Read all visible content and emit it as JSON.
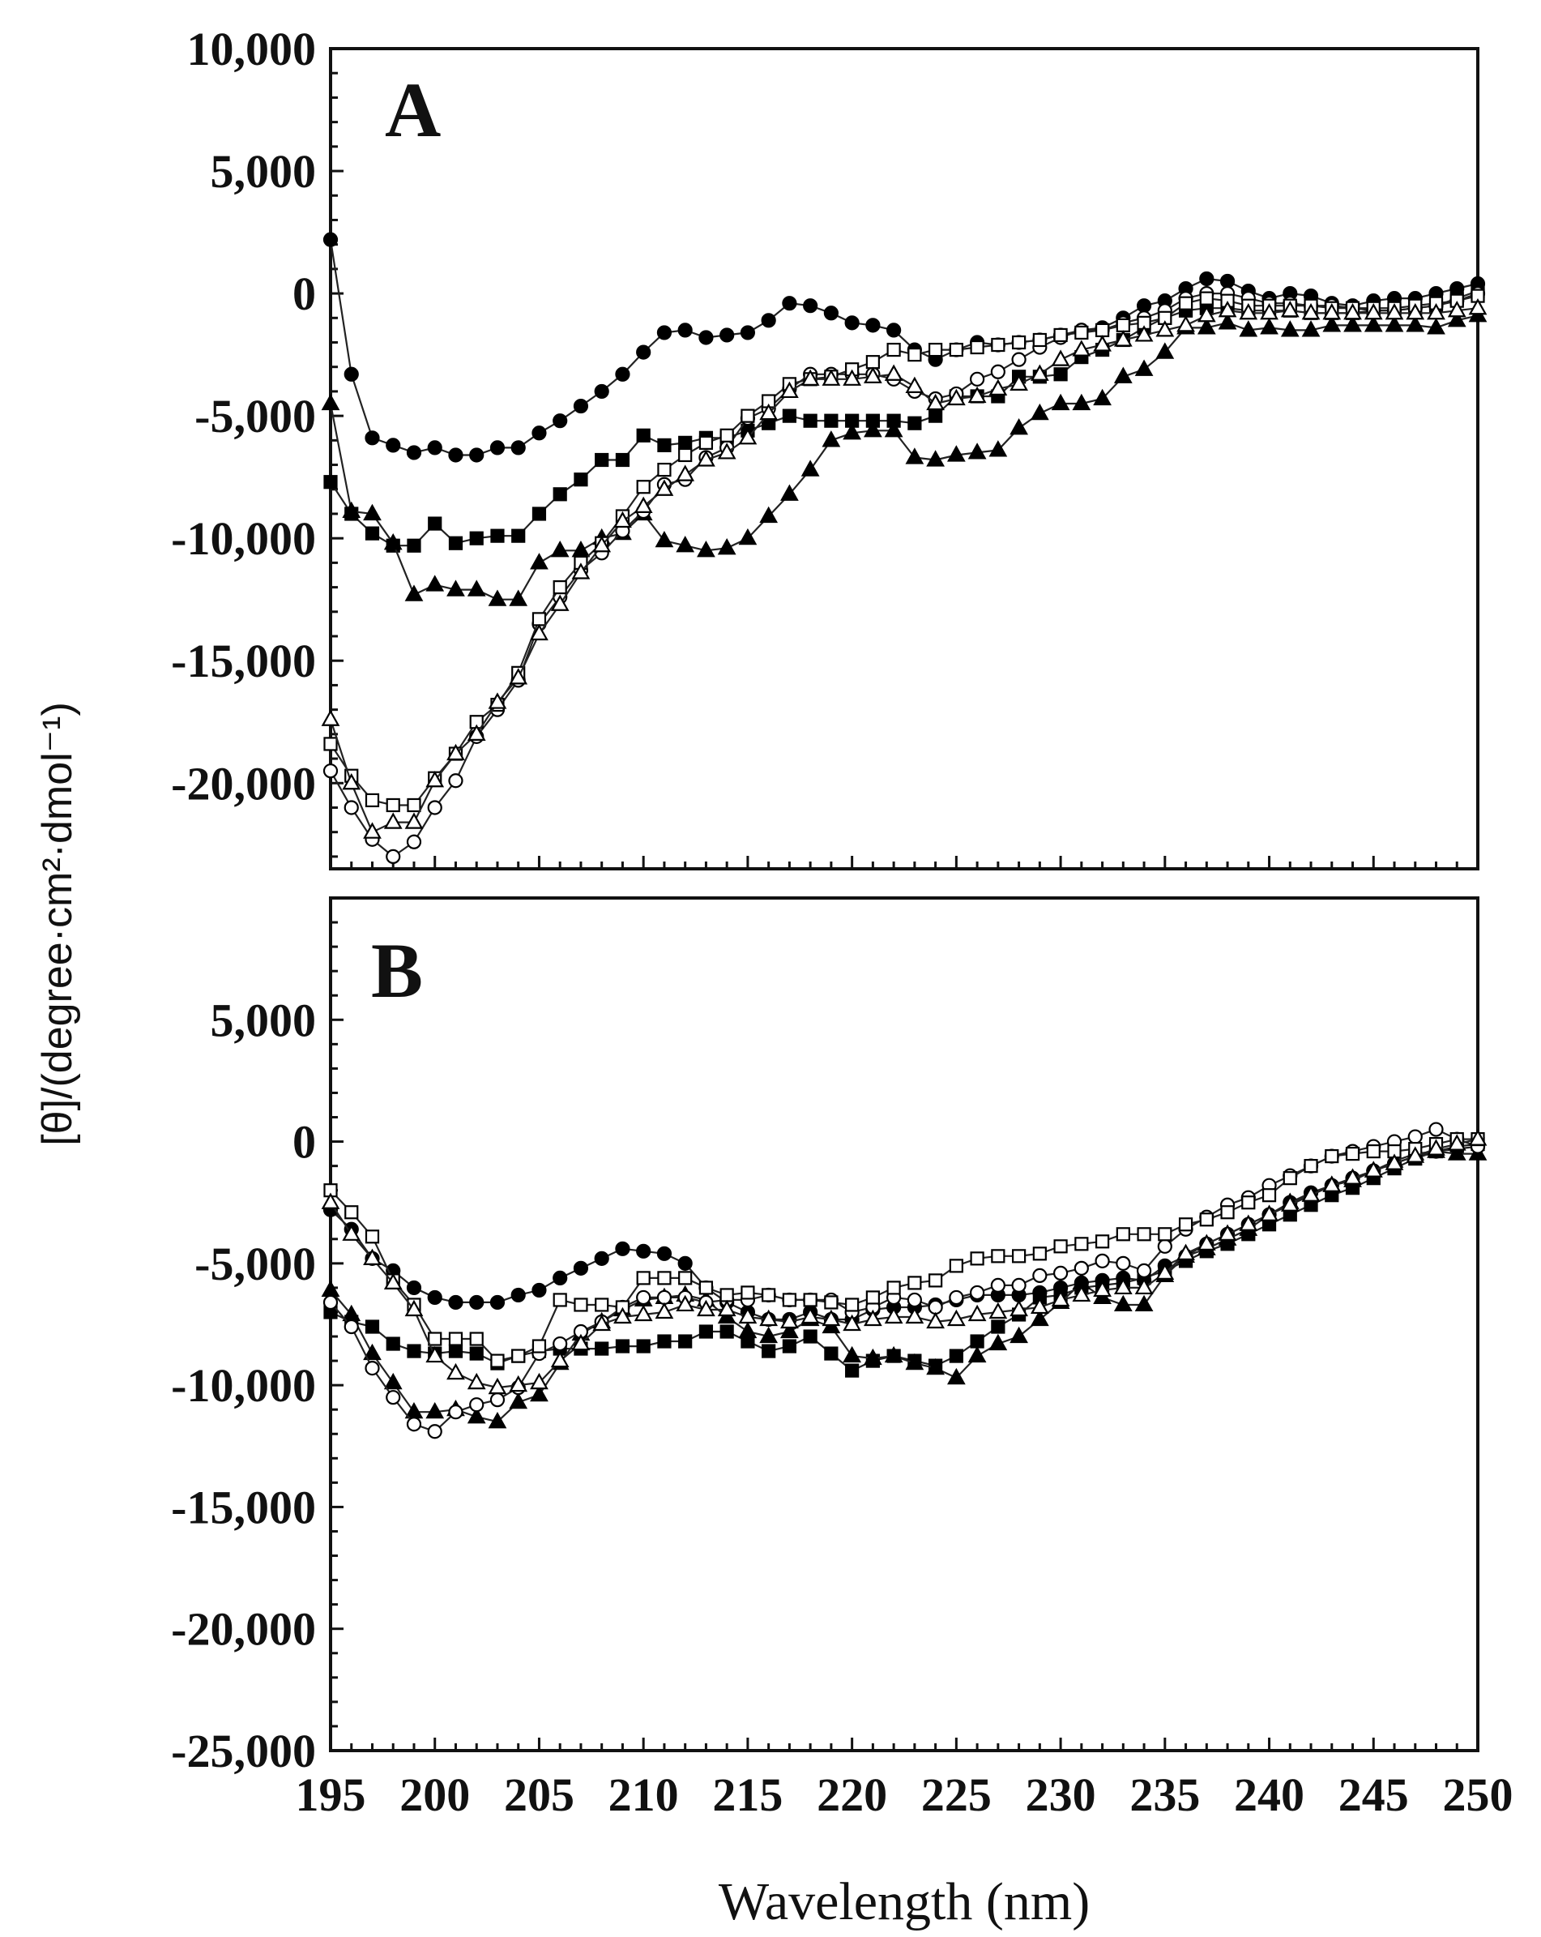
{
  "chart_data": [
    {
      "type": "line",
      "panel_label": "A",
      "xlabel": "",
      "ylabel": "[θ]/(degree·cm²·dmol⁻¹)",
      "xlim": [
        195,
        250
      ],
      "ylim": [
        -23500,
        10000
      ],
      "y_ticks": [
        10000,
        5000,
        0,
        -5000,
        -10000,
        -15000,
        -20000
      ],
      "y_tick_labels": [
        "10,000",
        "5,000",
        "0",
        "-5,000",
        "-10,000",
        "-15,000",
        "-20,000"
      ],
      "x": [
        195,
        196,
        197,
        198,
        199,
        200,
        201,
        202,
        203,
        204,
        205,
        206,
        207,
        208,
        209,
        210,
        211,
        212,
        213,
        214,
        215,
        216,
        217,
        218,
        219,
        220,
        221,
        222,
        223,
        224,
        225,
        226,
        227,
        228,
        229,
        230,
        231,
        232,
        233,
        234,
        235,
        236,
        237,
        238,
        239,
        240,
        241,
        242,
        243,
        244,
        245,
        246,
        247,
        248,
        249,
        250
      ],
      "series": [
        {
          "name": "filled circle",
          "marker": "circle",
          "filled": true,
          "values": [
            2200,
            -3300,
            -5900,
            -6200,
            -6500,
            -6300,
            -6600,
            -6600,
            -6300,
            -6300,
            -5700,
            -5200,
            -4600,
            -4000,
            -3300,
            -2400,
            -1600,
            -1500,
            -1800,
            -1700,
            -1600,
            -1100,
            -400,
            -500,
            -800,
            -1200,
            -1300,
            -1500,
            -2300,
            -2700,
            -2300,
            -2000,
            -2100,
            -2000,
            -1900,
            -1700,
            -1500,
            -1400,
            -1000,
            -500,
            -300,
            200,
            600,
            500,
            100,
            -200,
            0,
            -100,
            -400,
            -500,
            -300,
            -200,
            -200,
            0,
            200,
            400
          ]
        },
        {
          "name": "filled square",
          "marker": "square",
          "filled": true,
          "values": [
            -7700,
            -9000,
            -9800,
            -10300,
            -10300,
            -9400,
            -10200,
            -10000,
            -9900,
            -9900,
            -9000,
            -8200,
            -7600,
            -6800,
            -6800,
            -5800,
            -6200,
            -6100,
            -5900,
            -5900,
            -5600,
            -5300,
            -5000,
            -5200,
            -5200,
            -5200,
            -5200,
            -5200,
            -5300,
            -5000,
            -4200,
            -4200,
            -4200,
            -3400,
            -3400,
            -3300,
            -2600,
            -2300,
            -1900,
            -1400,
            -1000,
            -700,
            -600,
            -600,
            -700,
            -700,
            -700,
            -800,
            -800,
            -800,
            -700,
            -700,
            -600,
            -500,
            -200,
            100
          ]
        },
        {
          "name": "filled triangle",
          "marker": "triangle",
          "filled": true,
          "values": [
            -4500,
            -8900,
            -9000,
            -10200,
            -12300,
            -11900,
            -12100,
            -12100,
            -12500,
            -12500,
            -11000,
            -10500,
            -10500,
            -10000,
            -9800,
            -9000,
            -10100,
            -10300,
            -10500,
            -10400,
            -10000,
            -9100,
            -8200,
            -7200,
            -6000,
            -5700,
            -5600,
            -5600,
            -6700,
            -6800,
            -6600,
            -6500,
            -6400,
            -5500,
            -4900,
            -4500,
            -4500,
            -4300,
            -3400,
            -3100,
            -2400,
            -1400,
            -1400,
            -1200,
            -1500,
            -1400,
            -1500,
            -1500,
            -1300,
            -1300,
            -1300,
            -1300,
            -1300,
            -1400,
            -1100,
            -900
          ]
        },
        {
          "name": "open circle",
          "marker": "circle",
          "filled": false,
          "values": [
            -19500,
            -21000,
            -22300,
            -23000,
            -22400,
            -21000,
            -19900,
            -18100,
            -17000,
            -15800,
            -13500,
            -12400,
            -11300,
            -10600,
            -9700,
            -8900,
            -7800,
            -7600,
            -6700,
            -6300,
            -5100,
            -4700,
            -3900,
            -3300,
            -3300,
            -3300,
            -3300,
            -3500,
            -4000,
            -4300,
            -4100,
            -3500,
            -3200,
            -2700,
            -2200,
            -1800,
            -1500,
            -1500,
            -1200,
            -1000,
            -700,
            -200,
            0,
            0,
            -200,
            -400,
            -400,
            -500,
            -500,
            -600,
            -700,
            -700,
            -600,
            -500,
            -300,
            0
          ]
        },
        {
          "name": "open square",
          "marker": "square",
          "filled": false,
          "values": [
            -18400,
            -19700,
            -20700,
            -20900,
            -20900,
            -19800,
            -18800,
            -17500,
            -16800,
            -15500,
            -13300,
            -12000,
            -11000,
            -10200,
            -9100,
            -7900,
            -7200,
            -6600,
            -6100,
            -5800,
            -5000,
            -4400,
            -3700,
            -3500,
            -3400,
            -3100,
            -2800,
            -2300,
            -2500,
            -2300,
            -2300,
            -2200,
            -2100,
            -2000,
            -1900,
            -1700,
            -1600,
            -1500,
            -1300,
            -1200,
            -1000,
            -400,
            -200,
            -300,
            -500,
            -500,
            -500,
            -500,
            -600,
            -600,
            -600,
            -600,
            -500,
            -400,
            -300,
            -100
          ]
        },
        {
          "name": "open triangle",
          "marker": "triangle",
          "filled": false,
          "values": [
            -17400,
            -20000,
            -22000,
            -21600,
            -21600,
            -19900,
            -18800,
            -18000,
            -16700,
            -15700,
            -13900,
            -12700,
            -11400,
            -10300,
            -9300,
            -8700,
            -8000,
            -7400,
            -6800,
            -6500,
            -5900,
            -4900,
            -4000,
            -3500,
            -3500,
            -3500,
            -3400,
            -3300,
            -3800,
            -4500,
            -4300,
            -4200,
            -3900,
            -3700,
            -3300,
            -2700,
            -2300,
            -2100,
            -1900,
            -1700,
            -1500,
            -1300,
            -900,
            -700,
            -800,
            -800,
            -700,
            -800,
            -800,
            -800,
            -800,
            -800,
            -800,
            -800,
            -700,
            -600
          ]
        }
      ]
    },
    {
      "type": "line",
      "panel_label": "B",
      "xlabel": "Wavelength (nm)",
      "ylabel": "[θ]/(degree·cm²·dmol⁻¹)",
      "xlim": [
        195,
        250
      ],
      "ylim": [
        -25000,
        10000
      ],
      "x_ticks": [
        195,
        200,
        205,
        210,
        215,
        220,
        225,
        230,
        235,
        240,
        245,
        250
      ],
      "x_tick_labels": [
        "195",
        "200",
        "205",
        "210",
        "215",
        "220",
        "225",
        "230",
        "235",
        "240",
        "245",
        "250"
      ],
      "y_ticks": [
        5000,
        0,
        -5000,
        -10000,
        -15000,
        -20000,
        -25000
      ],
      "y_tick_labels": [
        "5,000",
        "0",
        "-5,000",
        "-10,000",
        "-15,000",
        "-20,000",
        "-25,000"
      ],
      "x": [
        195,
        196,
        197,
        198,
        199,
        200,
        201,
        202,
        203,
        204,
        205,
        206,
        207,
        208,
        209,
        210,
        211,
        212,
        213,
        214,
        215,
        216,
        217,
        218,
        219,
        220,
        221,
        222,
        223,
        224,
        225,
        226,
        227,
        228,
        229,
        230,
        231,
        232,
        233,
        234,
        235,
        236,
        237,
        238,
        239,
        240,
        241,
        242,
        243,
        244,
        245,
        246,
        247,
        248,
        249,
        250
      ],
      "series": [
        {
          "name": "filled circle",
          "marker": "circle",
          "filled": true,
          "values": [
            -2800,
            -3600,
            -4800,
            -5300,
            -6000,
            -6400,
            -6600,
            -6600,
            -6600,
            -6300,
            -6100,
            -5600,
            -5200,
            -4800,
            -4400,
            -4500,
            -4600,
            -5000,
            -6000,
            -6600,
            -7000,
            -7300,
            -7300,
            -7000,
            -7300,
            -7300,
            -6900,
            -6800,
            -6800,
            -6700,
            -6500,
            -6300,
            -6300,
            -6300,
            -6200,
            -6000,
            -5800,
            -5700,
            -5600,
            -5700,
            -5100,
            -4700,
            -4200,
            -3800,
            -3400,
            -3000,
            -2500,
            -2100,
            -1800,
            -1500,
            -1200,
            -900,
            -600,
            -400,
            -300,
            -200
          ]
        },
        {
          "name": "filled square",
          "marker": "square",
          "filled": true,
          "values": [
            -7000,
            -7400,
            -7600,
            -8300,
            -8600,
            -8700,
            -8600,
            -8700,
            -9100,
            -8800,
            -8600,
            -8500,
            -8500,
            -8500,
            -8400,
            -8400,
            -8200,
            -8200,
            -7800,
            -7800,
            -8200,
            -8600,
            -8400,
            -8000,
            -8700,
            -9400,
            -9000,
            -8800,
            -9000,
            -9200,
            -8800,
            -8200,
            -7600,
            -7100,
            -6400,
            -6300,
            -6000,
            -5900,
            -5800,
            -5600,
            -5300,
            -4900,
            -4500,
            -4200,
            -3800,
            -3400,
            -3000,
            -2600,
            -2200,
            -1900,
            -1500,
            -1100,
            -700,
            -400,
            -200,
            -100
          ]
        },
        {
          "name": "filled triangle",
          "marker": "triangle",
          "filled": true,
          "values": [
            -6100,
            -7100,
            -8700,
            -9900,
            -11100,
            -11100,
            -11000,
            -11300,
            -11500,
            -10700,
            -10400,
            -9100,
            -7900,
            -7400,
            -6900,
            -6500,
            -6400,
            -6300,
            -6500,
            -7200,
            -7800,
            -8000,
            -7800,
            -7300,
            -7600,
            -8800,
            -8900,
            -8800,
            -9100,
            -9300,
            -9700,
            -8800,
            -8300,
            -8000,
            -7300,
            -6600,
            -5800,
            -6400,
            -6700,
            -6700,
            -5500,
            -4700,
            -4400,
            -4000,
            -3600,
            -3000,
            -2500,
            -2200,
            -1800,
            -1600,
            -1200,
            -800,
            -500,
            -400,
            -500,
            -500
          ]
        },
        {
          "name": "open circle",
          "marker": "circle",
          "filled": false,
          "values": [
            -6600,
            -7600,
            -9300,
            -10500,
            -11600,
            -11900,
            -11100,
            -10800,
            -10600,
            -10100,
            -8700,
            -8300,
            -7800,
            -7400,
            -6800,
            -6400,
            -6400,
            -6400,
            -6600,
            -6500,
            -6500,
            -6300,
            -6500,
            -6500,
            -6500,
            -7000,
            -6800,
            -6400,
            -6500,
            -6800,
            -6400,
            -6200,
            -5900,
            -5900,
            -5500,
            -5400,
            -5200,
            -4900,
            -5000,
            -5300,
            -4300,
            -3600,
            -3100,
            -2600,
            -2300,
            -1800,
            -1400,
            -1000,
            -600,
            -400,
            -200,
            0,
            200,
            500,
            100,
            -200
          ]
        },
        {
          "name": "open square",
          "marker": "square",
          "filled": false,
          "values": [
            -2000,
            -2900,
            -3900,
            -5700,
            -6700,
            -8100,
            -8100,
            -8100,
            -9000,
            -8800,
            -8400,
            -6500,
            -6700,
            -6700,
            -6800,
            -5600,
            -5600,
            -5600,
            -6000,
            -6300,
            -6200,
            -6300,
            -6500,
            -6500,
            -6600,
            -6700,
            -6400,
            -6000,
            -5800,
            -5700,
            -5100,
            -4800,
            -4700,
            -4700,
            -4600,
            -4300,
            -4200,
            -4100,
            -3800,
            -3800,
            -3800,
            -3400,
            -3200,
            -2900,
            -2500,
            -2200,
            -1500,
            -1000,
            -600,
            -500,
            -400,
            -400,
            -300,
            -100,
            100,
            100
          ]
        },
        {
          "name": "open triangle",
          "marker": "triangle",
          "filled": false,
          "values": [
            -2500,
            -3800,
            -4800,
            -5800,
            -6900,
            -8800,
            -9500,
            -9900,
            -10100,
            -10000,
            -9900,
            -9000,
            -8300,
            -7500,
            -7200,
            -7100,
            -7000,
            -6700,
            -6900,
            -6900,
            -7200,
            -7300,
            -7400,
            -7200,
            -7300,
            -7500,
            -7300,
            -7200,
            -7200,
            -7400,
            -7300,
            -7100,
            -7000,
            -6900,
            -6800,
            -6500,
            -6300,
            -6100,
            -6000,
            -6000,
            -5400,
            -4600,
            -4200,
            -3800,
            -3400,
            -3000,
            -2600,
            -2200,
            -1800,
            -1500,
            -1200,
            -900,
            -600,
            -300,
            -100,
            100
          ]
        }
      ]
    }
  ]
}
